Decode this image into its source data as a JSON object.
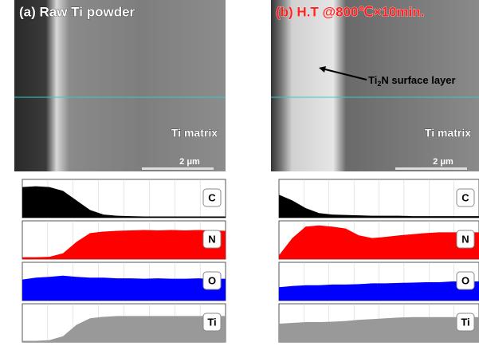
{
  "panels": [
    {
      "title": "(a) Raw Ti powder",
      "matrix_label": "Ti matrix",
      "scale_label": "2 μm",
      "profiles": [
        {
          "element": "C",
          "color": "#000000",
          "values": [
            0.8,
            0.82,
            0.8,
            0.7,
            0.45,
            0.2,
            0.08,
            0.05,
            0.04,
            0.03,
            0.03,
            0.03,
            0.03,
            0.03,
            0.03,
            0.03
          ]
        },
        {
          "element": "N",
          "color": "#ff0000",
          "values": [
            0.05,
            0.05,
            0.06,
            0.15,
            0.45,
            0.68,
            0.72,
            0.74,
            0.75,
            0.76,
            0.75,
            0.76,
            0.75,
            0.76,
            0.75,
            0.74
          ]
        },
        {
          "element": "O",
          "color": "#0000ff",
          "values": [
            0.55,
            0.6,
            0.62,
            0.65,
            0.62,
            0.6,
            0.6,
            0.58,
            0.58,
            0.57,
            0.58,
            0.57,
            0.57,
            0.58,
            0.57,
            0.57
          ]
        },
        {
          "element": "Ti",
          "color": "#999999",
          "values": [
            0.03,
            0.03,
            0.05,
            0.15,
            0.45,
            0.62,
            0.66,
            0.68,
            0.68,
            0.68,
            0.68,
            0.68,
            0.68,
            0.68,
            0.68,
            0.68
          ]
        }
      ]
    },
    {
      "title": "(b) H.T @800℃×10min.",
      "matrix_label": "Ti matrix",
      "scale_label": "2 μm",
      "annotation": {
        "pre": "Ti",
        "sub": "2",
        "post": "N surface layer"
      },
      "profiles": [
        {
          "element": "C",
          "color": "#000000",
          "values": [
            0.6,
            0.45,
            0.25,
            0.12,
            0.08,
            0.07,
            0.06,
            0.05,
            0.05,
            0.05,
            0.04,
            0.04,
            0.04,
            0.04,
            0.04,
            0.04
          ]
        },
        {
          "element": "N",
          "color": "#ff0000",
          "values": [
            0.1,
            0.55,
            0.85,
            0.88,
            0.85,
            0.8,
            0.62,
            0.55,
            0.58,
            0.62,
            0.65,
            0.68,
            0.7,
            0.7,
            0.7,
            0.7
          ]
        },
        {
          "element": "O",
          "color": "#0000ff",
          "values": [
            0.35,
            0.38,
            0.4,
            0.4,
            0.42,
            0.42,
            0.43,
            0.45,
            0.45,
            0.46,
            0.47,
            0.48,
            0.48,
            0.5,
            0.5,
            0.5
          ]
        },
        {
          "element": "Ti",
          "color": "#999999",
          "values": [
            0.48,
            0.5,
            0.52,
            0.52,
            0.53,
            0.55,
            0.58,
            0.6,
            0.62,
            0.64,
            0.65,
            0.65,
            0.65,
            0.65,
            0.65,
            0.65
          ]
        }
      ]
    }
  ]
}
